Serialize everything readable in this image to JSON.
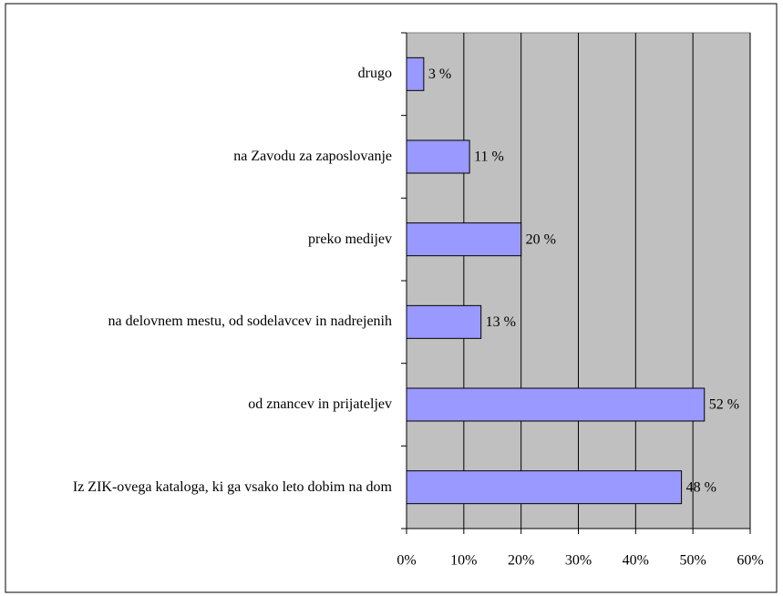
{
  "chart_data": {
    "type": "barh",
    "categories": [
      "drugo",
      "na Zavodu za zaposlovanje",
      "preko medijev",
      "na delovnem mestu, od sodelavcev in nadrejenih",
      "od znancev in prijateljev",
      "Iz ZIK-ovega kataloga, ki ga vsako leto dobim na dom"
    ],
    "values": [
      3,
      11,
      20,
      13,
      52,
      48
    ],
    "value_labels": [
      "3 %",
      "11 %",
      "20 %",
      "13 %",
      "52 %",
      "48 %"
    ],
    "color": "#9999ff",
    "xlim": [
      0,
      60
    ],
    "xticks": [
      {
        "value": 0,
        "label": "0%"
      },
      {
        "value": 10,
        "label": "10%"
      },
      {
        "value": 20,
        "label": "20%"
      },
      {
        "value": 30,
        "label": "30%"
      },
      {
        "value": 40,
        "label": "40%"
      },
      {
        "value": 50,
        "label": "50%"
      },
      {
        "value": 60,
        "label": "60%"
      }
    ],
    "grid": true
  }
}
